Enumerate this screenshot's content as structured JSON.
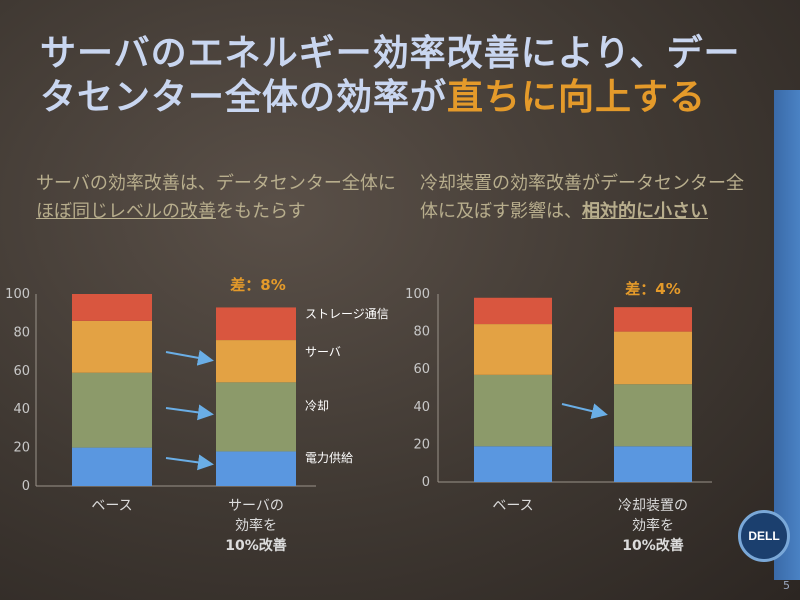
{
  "slide": {
    "title_part1": "サーバのエネルギー効率改善により、データセンター全体の効率が",
    "title_part2": "直ちに向上する",
    "page_number": "5",
    "logo_text": "DELL"
  },
  "left_note": {
    "part1": "サーバの効率改善は、データセンター全体に",
    "part2": "ほぼ同じレベルの改善",
    "part3": "をもたらす"
  },
  "right_note": {
    "part1": "冷却装置の効率改善がデータセンター全体に及ぼす影響は、",
    "part2": "相対的に小さい"
  },
  "colors": {
    "power": "#5a97e0",
    "cooling": "#8c9a6a",
    "server": "#e3a244",
    "storage": "#d9563f",
    "arrow": "#6aaee6",
    "axis_text": "#c8c8c8",
    "diff_label": "#e49a2a"
  },
  "chart_data": [
    {
      "type": "bar",
      "stacked": true,
      "categories": [
        "ベース",
        "サーバの効率を10%改善"
      ],
      "category_lines": [
        [
          "ベース"
        ],
        [
          "サーバの",
          "効率を",
          "10%改善"
        ]
      ],
      "series": [
        {
          "name": "電力供給",
          "values": [
            20,
            18
          ]
        },
        {
          "name": "冷却",
          "values": [
            39,
            36
          ]
        },
        {
          "name": "サーバ",
          "values": [
            27,
            22
          ]
        },
        {
          "name": "ストレージ通信",
          "values": [
            14,
            17
          ]
        }
      ],
      "ylim": [
        0,
        100
      ],
      "yticks": [
        0,
        20,
        40,
        60,
        80,
        100
      ],
      "annotation": "差：8%"
    },
    {
      "type": "bar",
      "stacked": true,
      "categories": [
        "ベース",
        "冷却装置の効率を10%改善"
      ],
      "category_lines": [
        [
          "ベース"
        ],
        [
          "冷却装置の",
          "効率を",
          "10%改善"
        ]
      ],
      "series": [
        {
          "name": "電力供給",
          "values": [
            19,
            19
          ]
        },
        {
          "name": "冷却",
          "values": [
            38,
            33
          ]
        },
        {
          "name": "サーバ",
          "values": [
            27,
            28
          ]
        },
        {
          "name": "ストレージ通信",
          "values": [
            14,
            13
          ]
        }
      ],
      "ylim": [
        0,
        100
      ],
      "yticks": [
        0,
        20,
        40,
        60,
        80,
        100
      ],
      "annotation": "差：4%"
    }
  ]
}
